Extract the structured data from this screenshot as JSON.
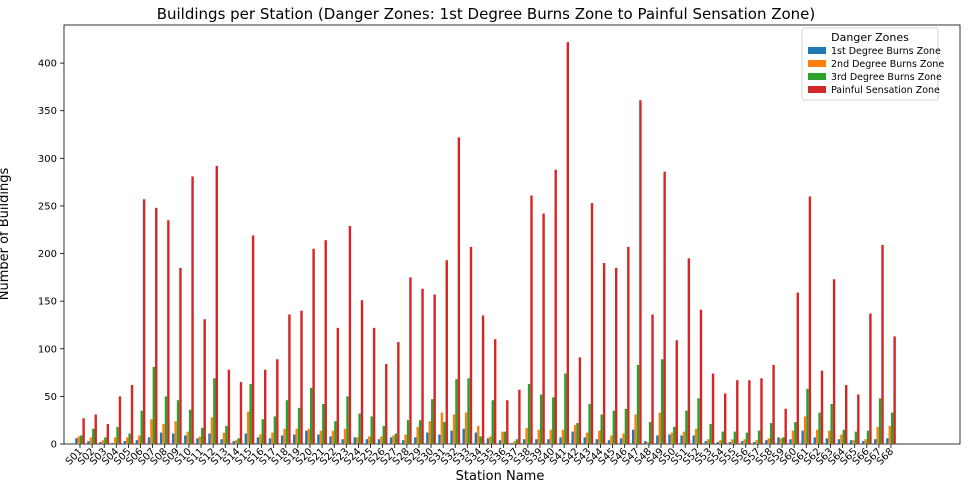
{
  "chart_data": {
    "type": "bar",
    "title": "Buildings per Station (Danger Zones: 1st Degree Burns Zone to Painful Sensation Zone)",
    "xlabel": "Station Name",
    "ylabel": "Number of Buildings",
    "ylim": [
      0,
      440
    ],
    "yticks": [
      0,
      50,
      100,
      150,
      200,
      250,
      300,
      350,
      400
    ],
    "legend_title": "Danger Zones",
    "legend_position": "top-right",
    "grid": false,
    "categories": [
      "S01",
      "S02",
      "S03",
      "S04",
      "S05",
      "S06",
      "S07",
      "S08",
      "S09",
      "S10",
      "S11",
      "S12",
      "S13",
      "S14",
      "S15",
      "S16",
      "S17",
      "S18",
      "S19",
      "S20",
      "S21",
      "S22",
      "S23",
      "S24",
      "S25",
      "S26",
      "S27",
      "S28",
      "S29",
      "S30",
      "S31",
      "S32",
      "S33",
      "S34",
      "S35",
      "S36",
      "S37",
      "S38",
      "S39",
      "S40",
      "S41",
      "S42",
      "S43",
      "S44",
      "S45",
      "S46",
      "S47",
      "S48",
      "S49",
      "S50",
      "S51",
      "S52",
      "S53",
      "S54",
      "S55",
      "S56",
      "S57",
      "S58",
      "S59",
      "S60",
      "S61",
      "S62",
      "S63",
      "S64",
      "S65",
      "S66",
      "S67",
      "S68"
    ],
    "series": [
      {
        "name": "1st Degree Burns Zone",
        "color": "#1f77b4",
        "values": [
          6,
          3,
          2,
          1,
          3,
          4,
          7,
          12,
          11,
          9,
          6,
          11,
          5,
          3,
          11,
          7,
          6,
          9,
          10,
          14,
          10,
          8,
          5,
          7,
          5,
          5,
          7,
          4,
          7,
          12,
          10,
          14,
          16,
          12,
          6,
          4,
          1,
          5,
          5,
          5,
          7,
          13,
          7,
          5,
          4,
          6,
          15,
          3,
          9,
          10,
          9,
          9,
          3,
          2,
          2,
          3,
          2,
          4,
          7,
          5,
          14,
          7,
          6,
          5,
          4,
          3,
          5,
          6
        ]
      },
      {
        "name": "2nd Degree Burns Zone",
        "color": "#ff7f0e",
        "values": [
          8,
          7,
          4,
          7,
          7,
          9,
          26,
          21,
          24,
          13,
          8,
          28,
          12,
          4,
          34,
          10,
          12,
          16,
          16,
          16,
          14,
          14,
          16,
          7,
          8,
          8,
          9,
          10,
          18,
          24,
          33,
          31,
          33,
          19,
          8,
          13,
          3,
          17,
          15,
          15,
          15,
          20,
          12,
          14,
          9,
          11,
          31,
          2,
          33,
          12,
          13,
          16,
          5,
          4,
          5,
          5,
          4,
          6,
          6,
          14,
          29,
          15,
          14,
          10,
          4,
          5,
          18,
          19
        ]
      },
      {
        "name": "3rd Degree Burns Zone",
        "color": "#2ca02c",
        "values": [
          9,
          16,
          7,
          18,
          11,
          35,
          81,
          50,
          46,
          36,
          17,
          69,
          19,
          6,
          63,
          26,
          29,
          46,
          38,
          59,
          42,
          24,
          50,
          32,
          29,
          19,
          11,
          25,
          25,
          47,
          23,
          68,
          69,
          8,
          46,
          13,
          5,
          63,
          52,
          49,
          74,
          22,
          42,
          31,
          35,
          37,
          83,
          23,
          89,
          18,
          35,
          48,
          21,
          13,
          13,
          12,
          14,
          22,
          7,
          23,
          58,
          33,
          42,
          15,
          13,
          14,
          48,
          33
        ]
      },
      {
        "name": "Painful Sensation Zone",
        "color": "#d62728",
        "values": [
          27,
          31,
          21,
          50,
          62,
          257,
          248,
          235,
          185,
          281,
          131,
          292,
          78,
          65,
          219,
          78,
          89,
          136,
          140,
          205,
          214,
          122,
          229,
          151,
          122,
          84,
          107,
          175,
          163,
          157,
          193,
          322,
          207,
          135,
          110,
          46,
          57,
          261,
          242,
          288,
          422,
          91,
          253,
          190,
          185,
          207,
          361,
          136,
          286,
          109,
          195,
          141,
          74,
          53,
          67,
          67,
          69,
          83,
          37,
          159,
          260,
          77,
          173,
          62,
          52,
          137,
          209,
          113
        ]
      }
    ]
  }
}
